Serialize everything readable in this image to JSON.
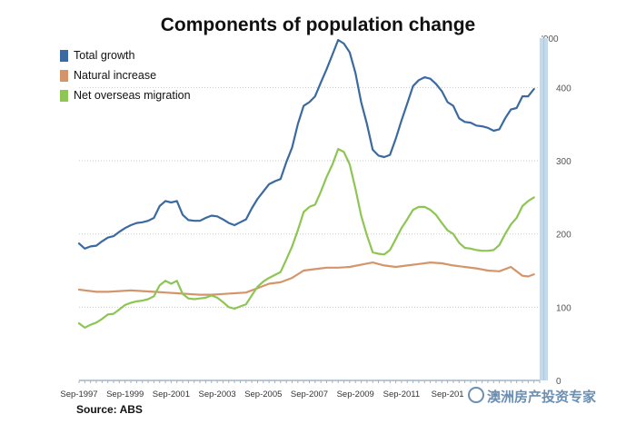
{
  "chart_data": {
    "type": "line",
    "title": "Components of population change",
    "unit_label": "'000",
    "source": "Source: ABS",
    "ylim": [
      0,
      460
    ],
    "yticks": [
      0,
      100,
      200,
      300,
      400
    ],
    "xlim": [
      1997.75,
      2017.75
    ],
    "xtick_values": [
      1997.75,
      1999.75,
      2001.75,
      2003.75,
      2005.75,
      2007.75,
      2009.75,
      2011.75,
      2013.75
    ],
    "xtick_labels": [
      "Sep-1997",
      "Sep-1999",
      "Sep-2001",
      "Sep-2003",
      "Sep-2005",
      "Sep-2007",
      "Sep-2009",
      "Sep-2011",
      "Sep-201"
    ],
    "legend_position": "top-left",
    "grid": "horizontal-dotted",
    "series": [
      {
        "name": "Total growth",
        "color": "#3b6aa0",
        "points": [
          [
            1997.75,
            187
          ],
          [
            1998.0,
            180
          ],
          [
            1998.25,
            183
          ],
          [
            1998.5,
            184
          ],
          [
            1998.75,
            190
          ],
          [
            1999.0,
            195
          ],
          [
            1999.25,
            197
          ],
          [
            1999.5,
            203
          ],
          [
            1999.75,
            208
          ],
          [
            2000.0,
            212
          ],
          [
            2000.25,
            215
          ],
          [
            2000.5,
            216
          ],
          [
            2000.75,
            218
          ],
          [
            2001.0,
            222
          ],
          [
            2001.25,
            238
          ],
          [
            2001.5,
            245
          ],
          [
            2001.75,
            243
          ],
          [
            2002.0,
            245
          ],
          [
            2002.25,
            226
          ],
          [
            2002.5,
            219
          ],
          [
            2002.75,
            218
          ],
          [
            2003.0,
            218
          ],
          [
            2003.25,
            222
          ],
          [
            2003.5,
            225
          ],
          [
            2003.75,
            224
          ],
          [
            2004.0,
            220
          ],
          [
            2004.25,
            215
          ],
          [
            2004.5,
            212
          ],
          [
            2004.75,
            216
          ],
          [
            2005.0,
            220
          ],
          [
            2005.25,
            235
          ],
          [
            2005.5,
            248
          ],
          [
            2005.75,
            258
          ],
          [
            2006.0,
            268
          ],
          [
            2006.25,
            272
          ],
          [
            2006.5,
            275
          ],
          [
            2006.75,
            298
          ],
          [
            2007.0,
            318
          ],
          [
            2007.25,
            350
          ],
          [
            2007.5,
            375
          ],
          [
            2007.75,
            380
          ],
          [
            2008.0,
            388
          ],
          [
            2008.25,
            407
          ],
          [
            2008.5,
            425
          ],
          [
            2008.75,
            445
          ],
          [
            2009.0,
            465
          ],
          [
            2009.25,
            460
          ],
          [
            2009.5,
            448
          ],
          [
            2009.75,
            420
          ],
          [
            2010.0,
            380
          ],
          [
            2010.25,
            350
          ],
          [
            2010.5,
            315
          ],
          [
            2010.75,
            307
          ],
          [
            2011.0,
            305
          ],
          [
            2011.25,
            308
          ],
          [
            2011.5,
            330
          ],
          [
            2011.75,
            355
          ],
          [
            2012.0,
            378
          ],
          [
            2012.25,
            402
          ],
          [
            2012.5,
            410
          ],
          [
            2012.75,
            414
          ],
          [
            2013.0,
            412
          ],
          [
            2013.25,
            405
          ],
          [
            2013.5,
            395
          ],
          [
            2013.75,
            380
          ],
          [
            2014.0,
            375
          ],
          [
            2014.25,
            358
          ],
          [
            2014.5,
            353
          ],
          [
            2014.75,
            352
          ],
          [
            2015.0,
            348
          ],
          [
            2015.25,
            347
          ],
          [
            2015.5,
            345
          ],
          [
            2015.75,
            341
          ],
          [
            2016.0,
            343
          ],
          [
            2016.25,
            358
          ],
          [
            2016.5,
            370
          ],
          [
            2016.75,
            372
          ],
          [
            2017.0,
            388
          ],
          [
            2017.25,
            388
          ],
          [
            2017.5,
            398
          ]
        ]
      },
      {
        "name": "Natural increase",
        "color": "#d4956a",
        "points": [
          [
            1997.75,
            124
          ],
          [
            1998.0,
            123
          ],
          [
            1998.5,
            121
          ],
          [
            1999.0,
            121
          ],
          [
            1999.5,
            122
          ],
          [
            2000.0,
            123
          ],
          [
            2000.5,
            122
          ],
          [
            2001.0,
            121
          ],
          [
            2001.5,
            120
          ],
          [
            2002.0,
            119
          ],
          [
            2002.5,
            118
          ],
          [
            2003.0,
            117
          ],
          [
            2003.5,
            117
          ],
          [
            2004.0,
            118
          ],
          [
            2004.5,
            119
          ],
          [
            2005.0,
            120
          ],
          [
            2005.5,
            126
          ],
          [
            2006.0,
            132
          ],
          [
            2006.5,
            134
          ],
          [
            2007.0,
            140
          ],
          [
            2007.5,
            150
          ],
          [
            2008.0,
            152
          ],
          [
            2008.5,
            154
          ],
          [
            2009.0,
            154
          ],
          [
            2009.5,
            155
          ],
          [
            2010.0,
            158
          ],
          [
            2010.5,
            161
          ],
          [
            2011.0,
            157
          ],
          [
            2011.5,
            155
          ],
          [
            2012.0,
            157
          ],
          [
            2012.5,
            159
          ],
          [
            2013.0,
            161
          ],
          [
            2013.5,
            160
          ],
          [
            2014.0,
            157
          ],
          [
            2014.5,
            155
          ],
          [
            2015.0,
            153
          ],
          [
            2015.5,
            150
          ],
          [
            2016.0,
            149
          ],
          [
            2016.5,
            155
          ],
          [
            2017.0,
            143
          ],
          [
            2017.25,
            142
          ],
          [
            2017.5,
            145
          ]
        ]
      },
      {
        "name": "Net overseas migration",
        "color": "#8dc653",
        "points": [
          [
            1997.75,
            78
          ],
          [
            1998.0,
            72
          ],
          [
            1998.25,
            76
          ],
          [
            1998.5,
            79
          ],
          [
            1998.75,
            84
          ],
          [
            1999.0,
            90
          ],
          [
            1999.25,
            91
          ],
          [
            1999.5,
            97
          ],
          [
            1999.75,
            103
          ],
          [
            2000.0,
            106
          ],
          [
            2000.25,
            108
          ],
          [
            2000.5,
            109
          ],
          [
            2000.75,
            111
          ],
          [
            2001.0,
            115
          ],
          [
            2001.25,
            130
          ],
          [
            2001.5,
            136
          ],
          [
            2001.75,
            132
          ],
          [
            2002.0,
            136
          ],
          [
            2002.25,
            118
          ],
          [
            2002.5,
            112
          ],
          [
            2002.75,
            111
          ],
          [
            2003.0,
            112
          ],
          [
            2003.25,
            113
          ],
          [
            2003.5,
            116
          ],
          [
            2003.75,
            113
          ],
          [
            2004.0,
            107
          ],
          [
            2004.25,
            100
          ],
          [
            2004.5,
            98
          ],
          [
            2004.75,
            101
          ],
          [
            2005.0,
            104
          ],
          [
            2005.25,
            116
          ],
          [
            2005.5,
            128
          ],
          [
            2005.75,
            135
          ],
          [
            2006.0,
            140
          ],
          [
            2006.25,
            144
          ],
          [
            2006.5,
            148
          ],
          [
            2006.75,
            165
          ],
          [
            2007.0,
            183
          ],
          [
            2007.25,
            205
          ],
          [
            2007.5,
            230
          ],
          [
            2007.75,
            237
          ],
          [
            2008.0,
            240
          ],
          [
            2008.25,
            258
          ],
          [
            2008.5,
            278
          ],
          [
            2008.75,
            295
          ],
          [
            2009.0,
            316
          ],
          [
            2009.25,
            312
          ],
          [
            2009.5,
            295
          ],
          [
            2009.75,
            262
          ],
          [
            2010.0,
            225
          ],
          [
            2010.25,
            198
          ],
          [
            2010.5,
            175
          ],
          [
            2010.75,
            173
          ],
          [
            2011.0,
            172
          ],
          [
            2011.25,
            178
          ],
          [
            2011.5,
            193
          ],
          [
            2011.75,
            208
          ],
          [
            2012.0,
            220
          ],
          [
            2012.25,
            233
          ],
          [
            2012.5,
            237
          ],
          [
            2012.75,
            237
          ],
          [
            2013.0,
            233
          ],
          [
            2013.25,
            226
          ],
          [
            2013.5,
            215
          ],
          [
            2013.75,
            205
          ],
          [
            2014.0,
            200
          ],
          [
            2014.25,
            188
          ],
          [
            2014.5,
            181
          ],
          [
            2014.75,
            180
          ],
          [
            2015.0,
            178
          ],
          [
            2015.25,
            177
          ],
          [
            2015.5,
            177
          ],
          [
            2015.75,
            178
          ],
          [
            2016.0,
            185
          ],
          [
            2016.25,
            200
          ],
          [
            2016.5,
            213
          ],
          [
            2016.75,
            222
          ],
          [
            2017.0,
            238
          ],
          [
            2017.25,
            245
          ],
          [
            2017.5,
            250
          ]
        ]
      }
    ]
  },
  "watermark": {
    "text": "澳洲房产投资专家"
  }
}
